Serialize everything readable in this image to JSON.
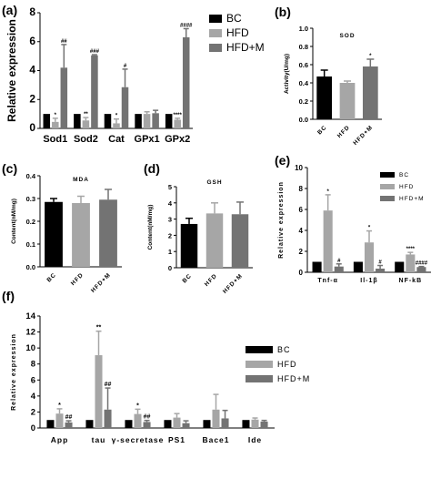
{
  "colors": {
    "bc": "#000000",
    "hfd": "#a6a6a6",
    "hfdm": "#737373"
  },
  "chart_data": [
    {
      "panel": "(a)",
      "type": "bar",
      "title": "",
      "ylabel": "Relative expression",
      "xlabel": "",
      "ylim": [
        0,
        8
      ],
      "yticks": [
        "0",
        "2",
        "4",
        "6",
        "8"
      ],
      "categories": [
        "Sod1",
        "Sod2",
        "Cat",
        "GPx1",
        "GPx2"
      ],
      "series": [
        {
          "name": "BC",
          "values": [
            1.0,
            1.0,
            1.0,
            1.0,
            1.0
          ],
          "errors": [
            0,
            0,
            0,
            0,
            0
          ],
          "marks": [
            "",
            "",
            "",
            "",
            ""
          ]
        },
        {
          "name": "HFD",
          "values": [
            0.45,
            0.55,
            0.35,
            1.0,
            0.6
          ],
          "errors": [
            0.25,
            0.2,
            0.3,
            0.15,
            0.1
          ],
          "marks": [
            "*",
            "**",
            "*",
            "",
            "****"
          ]
        },
        {
          "name": "HFD+M",
          "values": [
            4.2,
            5.05,
            2.85,
            1.05,
            6.3
          ],
          "errors": [
            1.6,
            0.05,
            1.25,
            0.2,
            0.6
          ],
          "marks": [
            "##",
            "###",
            "#",
            "",
            "####"
          ]
        }
      ],
      "legend": "right"
    },
    {
      "panel": "(b)",
      "type": "bar",
      "title": "SOD",
      "ylabel": "Activity(U/mg)",
      "xlabel": "",
      "ylim": [
        0,
        1
      ],
      "yticks": [
        "0.0",
        "0.2",
        "0.4",
        "0.6",
        "0.8",
        "1.0"
      ],
      "categories": [
        "BC",
        "HFD",
        "HFD+M"
      ],
      "values": [
        0.47,
        0.4,
        0.58
      ],
      "errors": [
        0.07,
        0.02,
        0.08
      ],
      "marks": [
        "",
        "",
        "*"
      ]
    },
    {
      "panel": "(c)",
      "type": "bar",
      "title": "MDA",
      "ylabel": "Content(nM/mg)",
      "xlabel": "",
      "ylim": [
        0,
        0.4
      ],
      "yticks": [
        "0.0",
        "0.1",
        "0.2",
        "0.3",
        "0.4"
      ],
      "categories": [
        "BC",
        "HFD",
        "HFD+M"
      ],
      "values": [
        0.285,
        0.28,
        0.295
      ],
      "errors": [
        0.015,
        0.03,
        0.045
      ],
      "marks": [
        "",
        "",
        ""
      ]
    },
    {
      "panel": "(d)",
      "type": "bar",
      "title": "GSH",
      "ylabel": "Content(nM/mg)",
      "xlabel": "",
      "ylim": [
        0,
        5
      ],
      "yticks": [
        "0",
        "1",
        "2",
        "3",
        "4",
        "5"
      ],
      "categories": [
        "BC",
        "HFD",
        "HFD+M"
      ],
      "values": [
        2.7,
        3.35,
        3.3
      ],
      "errors": [
        0.35,
        0.65,
        0.75
      ],
      "marks": [
        "",
        "",
        ""
      ]
    },
    {
      "panel": "(e)",
      "type": "bar",
      "title": "",
      "ylabel": "Relative expression",
      "xlabel": "",
      "ylim": [
        0,
        10
      ],
      "yticks": [
        "0",
        "2",
        "4",
        "6",
        "8",
        "10"
      ],
      "categories": [
        "Tnf-α",
        "Il-1β",
        "NF-kB"
      ],
      "series": [
        {
          "name": "BC",
          "values": [
            1.0,
            1.0,
            1.0
          ],
          "errors": [
            0,
            0,
            0
          ],
          "marks": [
            "",
            "",
            ""
          ]
        },
        {
          "name": "HFD",
          "values": [
            5.9,
            2.85,
            1.7
          ],
          "errors": [
            1.5,
            1.1,
            0.2
          ],
          "marks": [
            "*",
            "*",
            "****"
          ]
        },
        {
          "name": "HFD+M",
          "values": [
            0.55,
            0.35,
            0.5
          ],
          "errors": [
            0.25,
            0.3,
            0.05
          ],
          "marks": [
            "#",
            "#",
            "####"
          ]
        }
      ],
      "legend": "top-right"
    },
    {
      "panel": "(f)",
      "type": "bar",
      "title": "",
      "ylabel": "Relative expression",
      "xlabel": "",
      "ylim": [
        0,
        14
      ],
      "yticks": [
        "0",
        "2",
        "4",
        "6",
        "8",
        "10",
        "12",
        "14"
      ],
      "categories": [
        "App",
        "tau",
        "γ-secretase",
        "PS1",
        "Bace1",
        "Ide"
      ],
      "series": [
        {
          "name": "BC",
          "values": [
            1.0,
            1.0,
            1.0,
            1.0,
            1.0,
            1.0
          ],
          "errors": [
            0,
            0,
            0,
            0,
            0,
            0
          ],
          "marks": [
            "",
            "",
            "",
            "",
            "",
            ""
          ]
        },
        {
          "name": "HFD",
          "values": [
            1.8,
            9.1,
            1.75,
            1.3,
            2.3,
            1.05
          ],
          "errors": [
            0.6,
            3.0,
            0.6,
            0.5,
            1.9,
            0.2
          ],
          "marks": [
            "*",
            "**",
            "*",
            "",
            "",
            ""
          ]
        },
        {
          "name": "HFD+M",
          "values": [
            0.7,
            2.3,
            0.75,
            0.6,
            1.2,
            0.8
          ],
          "errors": [
            0.2,
            2.7,
            0.2,
            0.3,
            1.0,
            0.15
          ],
          "marks": [
            "##",
            "##",
            "##",
            "",
            "",
            ""
          ]
        }
      ],
      "legend": "top-right"
    }
  ]
}
